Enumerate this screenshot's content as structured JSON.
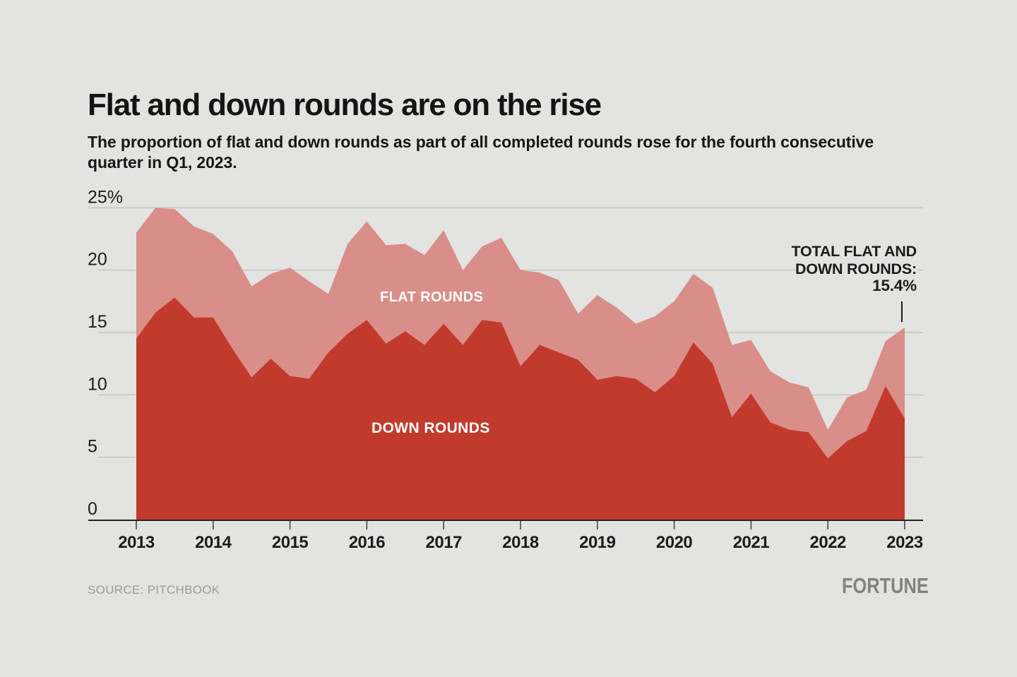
{
  "header": {
    "title": "Flat and down rounds are on the rise",
    "subtitle": "The proportion of flat and down rounds as part of all completed rounds rose for the fourth consecutive quarter in Q1, 2023."
  },
  "chart_data": {
    "type": "area",
    "stacked": true,
    "categories": [
      "2013 Q1",
      "2013 Q2",
      "2013 Q3",
      "2013 Q4",
      "2014 Q1",
      "2014 Q2",
      "2014 Q3",
      "2014 Q4",
      "2015 Q1",
      "2015 Q2",
      "2015 Q3",
      "2015 Q4",
      "2016 Q1",
      "2016 Q2",
      "2016 Q3",
      "2016 Q4",
      "2017 Q1",
      "2017 Q2",
      "2017 Q3",
      "2017 Q4",
      "2018 Q1",
      "2018 Q2",
      "2018 Q3",
      "2018 Q4",
      "2019 Q1",
      "2019 Q2",
      "2019 Q3",
      "2019 Q4",
      "2020 Q1",
      "2020 Q2",
      "2020 Q3",
      "2020 Q4",
      "2021 Q1",
      "2021 Q2",
      "2021 Q3",
      "2021 Q4",
      "2022 Q1",
      "2022 Q2",
      "2022 Q3",
      "2022 Q4",
      "2023 Q1"
    ],
    "series": [
      {
        "name": "DOWN ROUNDS",
        "color": "#c23a2b",
        "values": [
          14.5,
          16.6,
          17.8,
          16.2,
          16.2,
          13.7,
          11.4,
          12.9,
          11.5,
          11.3,
          13.4,
          14.9,
          16.0,
          14.1,
          15.1,
          14.0,
          15.7,
          14.0,
          16.0,
          15.8,
          12.3,
          14.0,
          13.4,
          12.8,
          11.2,
          11.5,
          11.3,
          10.2,
          11.5,
          14.2,
          12.5,
          8.2,
          10.1,
          7.8,
          7.2,
          7.0,
          4.9,
          6.3,
          7.1,
          10.7,
          8.1
        ]
      },
      {
        "name": "FLAT ROUNDS",
        "color": "#d98e89",
        "values": [
          8.5,
          8.4,
          7.1,
          7.3,
          6.7,
          7.8,
          7.3,
          6.8,
          8.7,
          7.8,
          4.7,
          7.2,
          7.9,
          7.9,
          7.0,
          7.2,
          7.5,
          6.0,
          5.9,
          6.8,
          7.7,
          5.8,
          5.8,
          3.7,
          6.8,
          5.5,
          4.4,
          6.1,
          6.0,
          5.5,
          6.1,
          5.8,
          4.3,
          4.1,
          3.8,
          3.6,
          2.3,
          3.5,
          3.3,
          3.6,
          7.3
        ]
      }
    ],
    "ylim": [
      0,
      25
    ],
    "yticks": [
      {
        "value": 0,
        "label": "0"
      },
      {
        "value": 5,
        "label": "5"
      },
      {
        "value": 10,
        "label": "10"
      },
      {
        "value": 15,
        "label": "15"
      },
      {
        "value": 20,
        "label": "20"
      },
      {
        "value": 25,
        "label": "25%"
      }
    ],
    "xtick_labels": [
      "2013",
      "2014",
      "2015",
      "2016",
      "2017",
      "2018",
      "2019",
      "2020",
      "2021",
      "2022",
      "2023"
    ],
    "grid": true,
    "legend_position": "labels-inside-areas"
  },
  "labels": {
    "flat": "FLAT ROUNDS",
    "down": "DOWN ROUNDS"
  },
  "annotation": {
    "line1": "TOTAL FLAT AND",
    "line2": "DOWN ROUNDS:",
    "value": "15.4%",
    "points_to": "2023 Q1 total"
  },
  "footer": {
    "source": "SOURCE: PITCHBOOK",
    "logo": "FORTUNE"
  },
  "colors": {
    "background": "#e3e3e1",
    "down": "#c23a2b",
    "flat": "#d98e89",
    "grid": "#b6b6b4",
    "axis": "#242424",
    "tick": "#3d3d3d",
    "text": "#1c1c1c",
    "muted": "#9c9c9a",
    "logo": "#82827f"
  }
}
